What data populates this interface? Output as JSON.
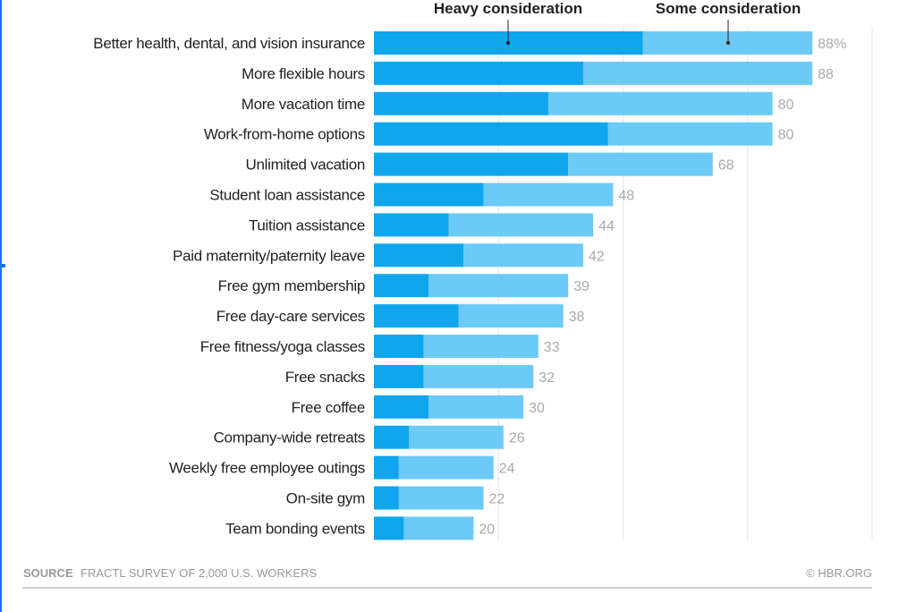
{
  "chart_data": {
    "type": "bar",
    "orientation": "horizontal",
    "stacked": true,
    "categories": [
      "Better health, dental, and vision insurance",
      "More flexible hours",
      "More vacation time",
      "Work-from-home options",
      "Unlimited vacation",
      "Student loan assistance",
      "Tuition assistance",
      "Paid maternity/paternity leave",
      "Free gym membership",
      "Free day-care services",
      "Free fitness/yoga classes",
      "Free snacks",
      "Free coffee",
      "Company-wide retreats",
      "Weekly free employee outings",
      "On-site gym",
      "Team bonding events"
    ],
    "totals": [
      88,
      88,
      80,
      80,
      68,
      48,
      44,
      42,
      39,
      38,
      33,
      32,
      30,
      26,
      24,
      22,
      20
    ],
    "total_labels": [
      "88%",
      "88",
      "80",
      "80",
      "68",
      "48",
      "44",
      "42",
      "39",
      "38",
      "33",
      "32",
      "30",
      "26",
      "24",
      "22",
      "20"
    ],
    "series": [
      {
        "name": "Heavy consideration",
        "color": "#0fa6ee",
        "values": [
          54,
          42,
          35,
          47,
          39,
          22,
          15,
          18,
          11,
          17,
          10,
          10,
          11,
          7,
          5,
          5,
          6
        ]
      },
      {
        "name": "Some consideration",
        "color": "#6ccaf7",
        "values": [
          34,
          46,
          45,
          33,
          29,
          26,
          29,
          24,
          28,
          21,
          23,
          22,
          19,
          19,
          19,
          17,
          14
        ]
      }
    ],
    "xlim": [
      0,
      100
    ],
    "gridlines": [
      25,
      50,
      75,
      100
    ],
    "legend": "top, annotated with pointer lines",
    "source_label": "SOURCE",
    "source_text": "FRACTL SURVEY OF 2,000 U.S. WORKERS",
    "credit": "© HBR.ORG"
  }
}
